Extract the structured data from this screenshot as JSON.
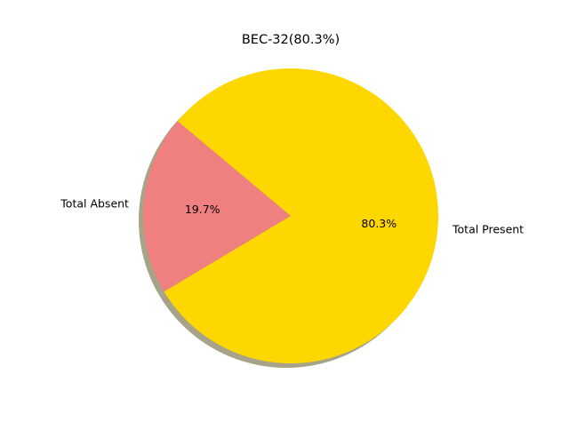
{
  "chart_data": {
    "type": "pie",
    "title": "BEC-32(80.3%)",
    "slices": [
      {
        "label": "Total Absent",
        "value": 19.7,
        "pct_label": "19.7%",
        "color": "#F08080"
      },
      {
        "label": "Total Present",
        "value": 80.3,
        "pct_label": "80.3%",
        "color": "#FFD700"
      }
    ],
    "shadow": true,
    "legend": "none"
  }
}
